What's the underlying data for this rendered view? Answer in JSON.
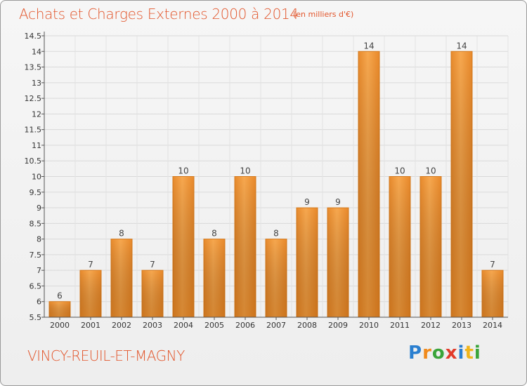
{
  "title": "Achats et Charges Externes 2000 à 2014",
  "subtitle": "(en milliers d'€)",
  "commune": "VINCY-REUIL-ET-MAGNY",
  "logo": {
    "text": "Proxiti",
    "letters": [
      {
        "ch": "P",
        "color": "#2a7fd0"
      },
      {
        "ch": "r",
        "color": "#f08a1c"
      },
      {
        "ch": "o",
        "color": "#3aa43a"
      },
      {
        "ch": "x",
        "color": "#e23b2a"
      },
      {
        "ch": "i",
        "color": "#2a7fd0"
      },
      {
        "ch": "t",
        "color": "#f0b51c"
      },
      {
        "ch": "i",
        "color": "#3aa43a"
      }
    ]
  },
  "colors": {
    "accent": "#e2552b",
    "bar_light": "#f5a54e",
    "bar_dark": "#e07e1e",
    "bar_edge": "#c96a14"
  },
  "chart_data": {
    "type": "bar",
    "title": "Achats et Charges Externes 2000 à 2014",
    "categories": [
      "2000",
      "2001",
      "2002",
      "2003",
      "2004",
      "2005",
      "2006",
      "2007",
      "2008",
      "2009",
      "2010",
      "2011",
      "2012",
      "2013",
      "2014"
    ],
    "values": [
      6,
      7,
      8,
      7,
      10,
      8,
      10,
      8,
      9,
      9,
      14,
      10,
      10,
      14,
      7
    ],
    "ylim": [
      5.5,
      14.5
    ],
    "yticks": [
      "5.5",
      "6",
      "6.5",
      "7",
      "7.5",
      "8",
      "8.5",
      "9",
      "9.5",
      "10",
      "10.5",
      "11",
      "11.5",
      "12",
      "12.5",
      "13",
      "13.5",
      "14",
      "14.5"
    ],
    "grid": true
  }
}
